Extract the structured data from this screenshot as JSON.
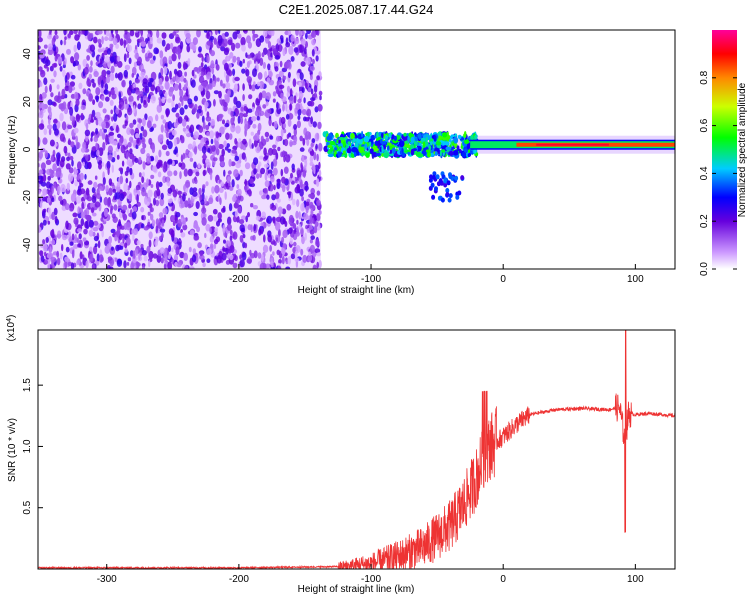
{
  "figure_title": "C2E1.2025.087.17.44.G24",
  "chart_data": [
    {
      "type": "heatmap",
      "title": "",
      "xlabel": "Height of straight line (km)",
      "ylabel": "Frequency (Hz)",
      "xlim": [
        -352,
        130
      ],
      "ylim": [
        -50,
        50
      ],
      "xticks": [
        -300,
        -200,
        -100,
        0,
        100
      ],
      "yticks": [
        -40,
        -20,
        0,
        20,
        40
      ],
      "grid": false,
      "colorbar": {
        "label": "Normalized spectral amplitude",
        "range": [
          0,
          1
        ],
        "ticks": [
          "0.0",
          "0.2",
          "0.4",
          "0.6",
          "0.8"
        ]
      },
      "regions": [
        {
          "description": "scattered noise",
          "x": [
            -352,
            -138
          ],
          "amplitude": [
            0.05,
            0.25
          ]
        },
        {
          "description": "signal line",
          "x": [
            -135,
            130
          ],
          "frequency": 2,
          "amplitude_max": 1.0
        }
      ]
    },
    {
      "type": "line",
      "title": "",
      "xlabel": "Height of straight line (km)",
      "ylabel": "SNR (10 * v/v)",
      "y_multiplier": "(x10^4)",
      "xlim": [
        -352,
        130
      ],
      "ylim": [
        0,
        1.95
      ],
      "xticks": [
        -300,
        -200,
        -100,
        0,
        100
      ],
      "yticks": [
        "0.5",
        "1.0",
        "1.5"
      ],
      "grid": false,
      "color": "#ee3333",
      "x": [
        -352,
        -200,
        -120,
        -100,
        -80,
        -60,
        -40,
        -30,
        -20,
        -15,
        -10,
        0,
        10,
        20,
        40,
        60,
        80,
        88,
        92,
        95,
        100,
        110,
        120,
        130
      ],
      "y": [
        0.01,
        0.01,
        0.02,
        0.04,
        0.1,
        0.18,
        0.35,
        0.52,
        0.75,
        0.9,
        1.0,
        1.08,
        1.18,
        1.26,
        1.3,
        1.31,
        1.3,
        1.32,
        1.05,
        1.27,
        1.26,
        1.27,
        1.26,
        1.25
      ]
    }
  ]
}
